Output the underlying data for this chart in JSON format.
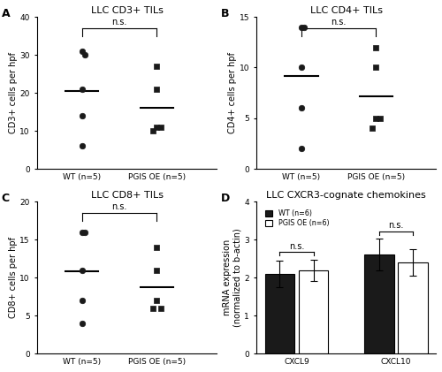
{
  "panel_A": {
    "title": "LLC CD3+ TILs",
    "ylabel": "CD3+ cells per hpf",
    "WT_data": [
      31,
      30,
      21,
      14,
      6
    ],
    "PGIS_data": [
      27,
      21,
      11,
      11,
      10
    ],
    "WT_mean": 20.4,
    "PGIS_mean": 16.0,
    "ylim": [
      0,
      40
    ],
    "yticks": [
      0,
      10,
      20,
      30,
      40
    ],
    "xtick_labels": [
      "WT (n=5)",
      "PGIS OE (n=5)"
    ]
  },
  "panel_B": {
    "title": "LLC CD4+ TILs",
    "ylabel": "CD4+ cells per hpf",
    "WT_data": [
      14,
      14,
      10,
      6,
      2
    ],
    "PGIS_data": [
      12,
      10,
      5,
      5,
      4
    ],
    "WT_mean": 9.2,
    "PGIS_mean": 7.2,
    "ylim": [
      0,
      15
    ],
    "yticks": [
      0,
      5,
      10,
      15
    ],
    "xtick_labels": [
      "WT (n=5)",
      "PGIS OE (n=5)"
    ]
  },
  "panel_C": {
    "title": "LLC CD8+ TILs",
    "ylabel": "CD8+ cells per hpf",
    "WT_data": [
      16,
      16,
      11,
      7,
      4
    ],
    "PGIS_data": [
      14,
      11,
      7,
      6,
      6
    ],
    "WT_mean": 10.8,
    "PGIS_mean": 8.8,
    "ylim": [
      0,
      20
    ],
    "yticks": [
      0,
      5,
      10,
      15,
      20
    ],
    "xtick_labels": [
      "WT (n=5)",
      "PGIS OE (n=5)"
    ]
  },
  "panel_D": {
    "title": "LLC CXCR3-cognate chemokines",
    "ylabel": "mRNA expression\n(normalized to b-actin)",
    "groups": [
      "CXCL9",
      "CXCL10"
    ],
    "WT_means": [
      2.1,
      2.6
    ],
    "PGIS_means": [
      2.2,
      2.4
    ],
    "WT_sems": [
      0.35,
      0.42
    ],
    "PGIS_sems": [
      0.28,
      0.35
    ],
    "ylim": [
      0,
      4.0
    ],
    "yticks": [
      0,
      1,
      2,
      3,
      4
    ],
    "legend_labels": [
      "WT (n=6)",
      "PGIS OE (n=6)"
    ],
    "bar_colors": [
      "#1a1a1a",
      "#ffffff"
    ],
    "bar_edgecolor": "#000000"
  },
  "dot_color": "#1a1a1a",
  "mean_line_color": "#000000",
  "ns_text": "n.s.",
  "label_fontsize": 7,
  "title_fontsize": 8,
  "tick_fontsize": 6.5,
  "panel_label_fontsize": 9
}
